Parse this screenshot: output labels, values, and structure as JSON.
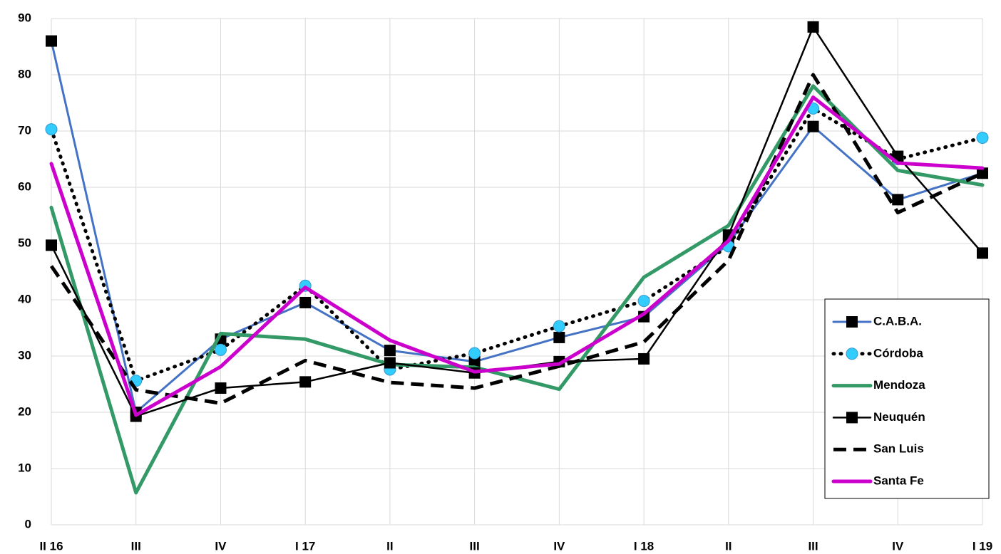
{
  "chart_data": {
    "type": "line",
    "categories": [
      "II 16",
      "III",
      "IV",
      "I 17",
      "II",
      "III",
      "IV",
      "I 18",
      "II",
      "III",
      "IV",
      "I 19"
    ],
    "ylim": [
      0,
      90
    ],
    "yticks": [
      0,
      10,
      20,
      30,
      40,
      50,
      60,
      70,
      80,
      90
    ],
    "grid": true,
    "legend": "lower right",
    "series": [
      {
        "name": "C.A.B.A.",
        "color": "#4472c4",
        "style": "solid",
        "marker": "square",
        "marker_color": "#000000",
        "values": [
          86,
          20,
          33,
          39.5,
          31,
          29,
          33.3,
          37,
          50,
          70.8,
          57.8,
          62.5
        ]
      },
      {
        "name": "Córdoba",
        "color": "#000000",
        "style": "dotted",
        "marker": "circle",
        "marker_color": "#33ccff",
        "values": [
          70.3,
          25.6,
          31.1,
          42.5,
          27.6,
          30.5,
          35.3,
          39.8,
          49.5,
          74,
          65,
          68.8
        ]
      },
      {
        "name": "Mendoza",
        "color": "#339966",
        "style": "solid",
        "marker": null,
        "values": [
          56.4,
          5.7,
          34,
          33,
          28.5,
          28,
          24.1,
          44,
          53.2,
          78,
          63,
          60.4
        ]
      },
      {
        "name": "Neuquén",
        "color": "#000000",
        "style": "solid",
        "marker": "square",
        "marker_color": "#000000",
        "values": [
          49.7,
          19.3,
          24.3,
          25.4,
          28.8,
          27,
          29,
          29.5,
          51.5,
          88.5,
          65.5,
          48.3
        ]
      },
      {
        "name": "San Luis",
        "color": "#000000",
        "style": "dashed",
        "marker": null,
        "values": [
          46,
          24,
          21.6,
          29.2,
          25.3,
          24.3,
          28.2,
          32.5,
          47,
          80,
          55.5,
          62.5
        ]
      },
      {
        "name": "Santa Fe",
        "color": "#cc00cc",
        "style": "solid",
        "marker": null,
        "values": [
          64.2,
          19.5,
          28.1,
          42.2,
          32.8,
          27.2,
          28.6,
          37.5,
          50.5,
          76,
          64.3,
          63.4
        ]
      }
    ]
  }
}
